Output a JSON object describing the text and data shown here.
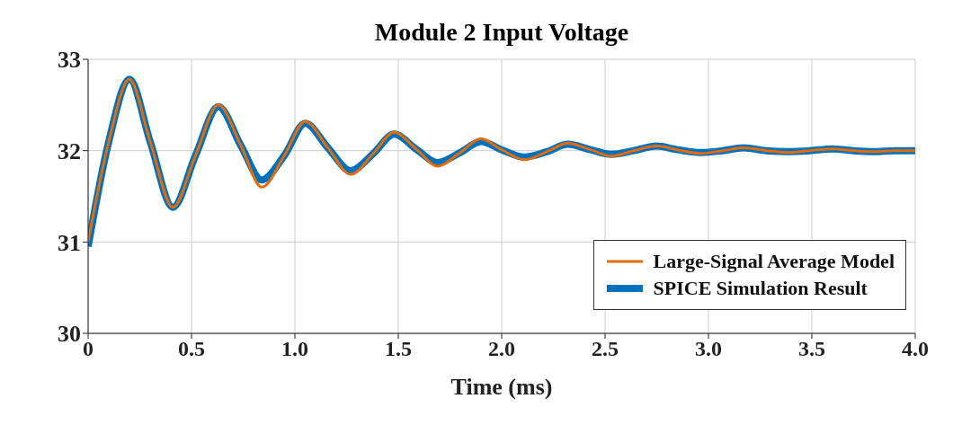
{
  "chart_data": {
    "type": "line",
    "title": "Module 2 Input Voltage",
    "xlabel": "Time (ms)",
    "x": [
      0,
      0.1,
      0.2,
      0.3,
      0.41,
      0.52,
      0.63,
      0.74,
      0.84,
      0.95,
      1.05,
      1.16,
      1.27,
      1.38,
      1.48,
      1.59,
      1.69,
      1.8,
      1.9,
      2.0,
      2.11,
      2.22,
      2.32,
      2.43,
      2.53,
      2.64,
      2.75,
      2.85,
      2.96,
      3.07,
      3.17,
      3.28,
      3.38,
      3.49,
      3.6,
      3.7,
      3.8,
      3.9,
      4.0
    ],
    "series": [
      {
        "name": "SPICE Simulation Result",
        "color": "#0072bd",
        "values": [
          30.95,
          32.1,
          32.78,
          32.1,
          31.38,
          31.95,
          32.48,
          32.05,
          31.68,
          31.95,
          32.3,
          32.03,
          31.78,
          31.97,
          32.18,
          32.01,
          31.87,
          31.98,
          32.1,
          32.01,
          31.93,
          31.99,
          32.07,
          32.01,
          31.96,
          32.0,
          32.05,
          32.01,
          31.98,
          32.0,
          32.03,
          32.0,
          31.99,
          32.0,
          32.02,
          32.0,
          31.99,
          32.0,
          32.0
        ]
      },
      {
        "name": "Large-Signal Average Model",
        "color": "#e36c0a",
        "values": [
          31.0,
          32.1,
          32.78,
          32.1,
          31.38,
          31.95,
          32.5,
          32.05,
          31.6,
          31.95,
          32.32,
          32.03,
          31.74,
          31.97,
          32.2,
          32.01,
          31.83,
          31.98,
          32.13,
          32.01,
          31.9,
          31.99,
          32.08,
          32.01,
          31.94,
          32.0,
          32.05,
          32.01,
          31.97,
          32.0,
          32.03,
          32.0,
          31.98,
          32.0,
          32.02,
          32.0,
          31.99,
          32.0,
          32.0
        ]
      }
    ],
    "xlim": [
      0,
      4
    ],
    "xticks": [
      0,
      0.5,
      {
        "value": 1,
        "label": "1.0"
      },
      1.5,
      {
        "value": 2,
        "label": "2.0"
      },
      2.5,
      {
        "value": 3,
        "label": "3.0"
      },
      3.5,
      {
        "value": 4,
        "label": "4.0"
      }
    ],
    "ylim": [
      30,
      33
    ],
    "yticks": [
      30,
      31,
      32,
      33
    ],
    "grid": true,
    "legend": "bottom right",
    "line_style": "solid",
    "marker": "none"
  }
}
